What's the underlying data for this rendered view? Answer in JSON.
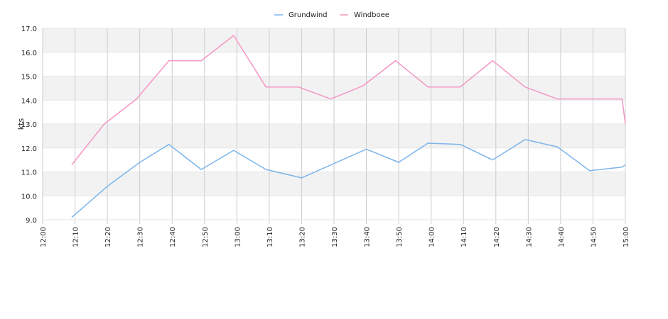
{
  "chart_data": {
    "type": "line",
    "title": "",
    "xlabel": "",
    "ylabel": "kts",
    "ylim": [
      9.0,
      17.0
    ],
    "yticks": [
      "9.0",
      "10.0",
      "11.0",
      "12.0",
      "13.0",
      "14.0",
      "15.0",
      "16.0",
      "17.0"
    ],
    "x_range": [
      "12:00",
      "15:00"
    ],
    "xticks": [
      "12:00",
      "12:10",
      "12:20",
      "12:30",
      "12:40",
      "12:50",
      "13:00",
      "13:10",
      "13:20",
      "13:30",
      "13:40",
      "13:50",
      "14:00",
      "14:10",
      "14:20",
      "14:30",
      "14:40",
      "14:50",
      "15:00"
    ],
    "grid": true,
    "legend_position": "top-center",
    "series": [
      {
        "name": "Grundwind",
        "color": "#7cb5ec",
        "points": [
          [
            "12:09",
            9.1
          ],
          [
            "12:20",
            10.4
          ],
          [
            "12:30",
            11.4
          ],
          [
            "12:39",
            12.15
          ],
          [
            "12:49",
            11.1
          ],
          [
            "12:59",
            11.9
          ],
          [
            "13:09",
            11.1
          ],
          [
            "13:20",
            10.75
          ],
          [
            "13:30",
            11.35
          ],
          [
            "13:40",
            11.95
          ],
          [
            "13:50",
            11.4
          ],
          [
            "13:59",
            12.2
          ],
          [
            "14:09",
            12.15
          ],
          [
            "14:19",
            11.5
          ],
          [
            "14:29",
            12.35
          ],
          [
            "14:39",
            12.05
          ],
          [
            "14:49",
            11.05
          ],
          [
            "14:59",
            11.2
          ],
          [
            "15:00",
            11.3
          ]
        ]
      },
      {
        "name": "Windboee",
        "color": "#f397c4",
        "points": [
          [
            "12:09",
            11.3
          ],
          [
            "12:19",
            13.0
          ],
          [
            "12:29",
            14.05
          ],
          [
            "12:39",
            15.65
          ],
          [
            "12:49",
            15.65
          ],
          [
            "12:59",
            16.7
          ],
          [
            "13:09",
            14.55
          ],
          [
            "13:19",
            14.55
          ],
          [
            "13:29",
            14.05
          ],
          [
            "13:39",
            14.6
          ],
          [
            "13:49",
            15.65
          ],
          [
            "13:59",
            14.55
          ],
          [
            "14:09",
            14.55
          ],
          [
            "14:19",
            15.65
          ],
          [
            "14:29",
            14.55
          ],
          [
            "14:39",
            14.05
          ],
          [
            "14:49",
            14.05
          ],
          [
            "14:59",
            14.05
          ],
          [
            "15:00",
            13.0
          ]
        ]
      }
    ]
  }
}
